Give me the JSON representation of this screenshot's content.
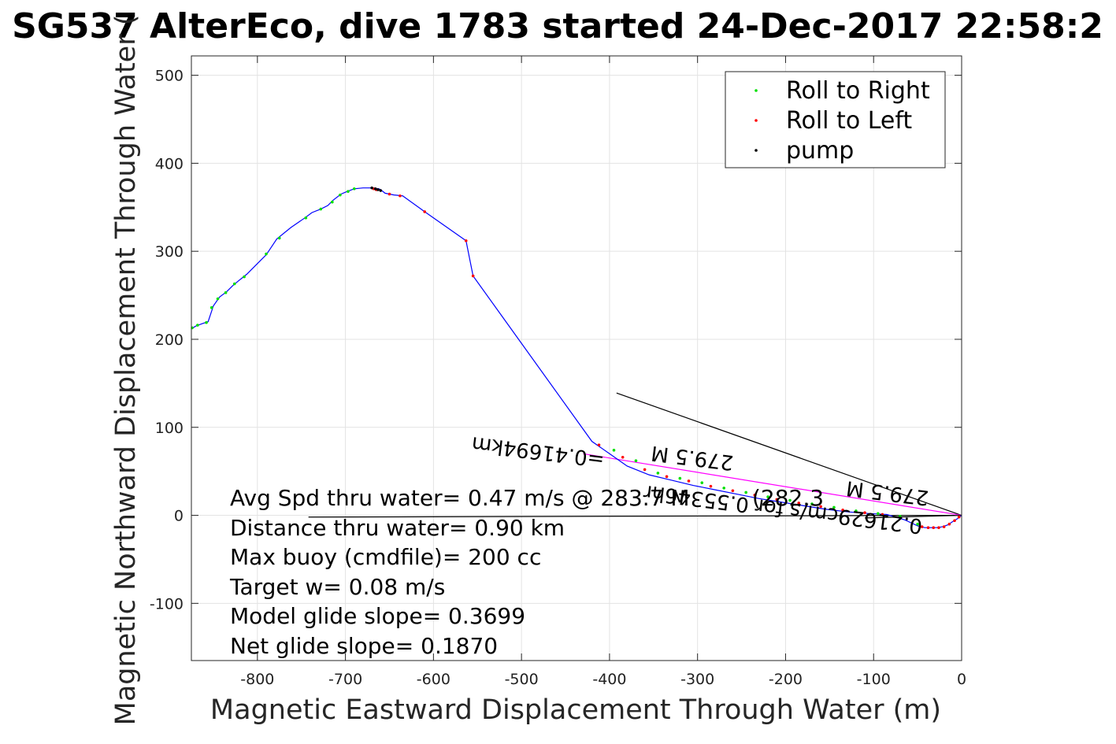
{
  "chart_data": {
    "type": "line",
    "title": "SG537 AlterEco, dive 1783 started 24-Dec-2017 22:58:2",
    "xlabel": "Magnetic Eastward Displacement Through Water (m)",
    "ylabel": "Magnetic Northward Displacement Through Water (",
    "xlim": [
      -875,
      0
    ],
    "ylim": [
      -165,
      522
    ],
    "xticks": [
      -800,
      -700,
      -600,
      -500,
      -400,
      -300,
      -200,
      -100,
      0
    ],
    "xtick_labels": [
      "-800",
      "-700",
      "-600",
      "-500",
      "-400",
      "-300",
      "-200",
      "-100",
      "0"
    ],
    "yticks": [
      -100,
      0,
      100,
      200,
      300,
      400,
      500
    ],
    "ytick_labels": [
      "-100",
      "0",
      "100",
      "200",
      "300",
      "400",
      "500"
    ],
    "grid": true,
    "legend_position": "top-right",
    "legend": [
      {
        "label": "Roll to Right",
        "color": "#00e000"
      },
      {
        "label": "Roll to Left",
        "color": "#ff0000"
      },
      {
        "label": "pump",
        "color": "#000000"
      }
    ],
    "track": {
      "color": "#0000ff",
      "x": [
        -875,
        -870,
        -862,
        -856,
        -850,
        -843,
        -835,
        -828,
        -822,
        -812,
        -798,
        -790,
        -778,
        -762,
        -746,
        -738,
        -728,
        -720,
        -714,
        -705,
        -698,
        -690,
        -680,
        -668,
        -662,
        -660,
        -655,
        -645,
        -635,
        -610,
        -563,
        -555,
        -420,
        -400,
        -380,
        -355,
        -330,
        -305,
        -280,
        -255,
        -230,
        -205,
        -180,
        -155,
        -130,
        -105,
        -85,
        -65,
        -50,
        -42,
        -35,
        -28,
        -22,
        -16,
        -10,
        -5,
        0
      ],
      "y": [
        212,
        215,
        218,
        220,
        238,
        248,
        254,
        261,
        266,
        274,
        288,
        296,
        314,
        327,
        338,
        344,
        348,
        352,
        358,
        365,
        368,
        371,
        372,
        372,
        371,
        370,
        366,
        364,
        363,
        345,
        312,
        272,
        84,
        70,
        56,
        46,
        40,
        34,
        29,
        24,
        19,
        15,
        11,
        7,
        4,
        2,
        1,
        -5,
        -12,
        -14,
        -14,
        -14,
        -13,
        -11,
        -7,
        -4,
        0
      ]
    },
    "roll_right": {
      "x": [
        -874,
        -868,
        -858,
        -852,
        -845,
        -836,
        -826,
        -815,
        -790,
        -775,
        -745,
        -728,
        -715,
        -706,
        -697,
        -690,
        -395,
        -370,
        -345,
        -320,
        -295,
        -270,
        -245,
        -220,
        -195,
        -170,
        -145,
        -120,
        -95,
        -70,
        -50
      ],
      "y": [
        213,
        216,
        219,
        236,
        246,
        253,
        263,
        271,
        297,
        315,
        338,
        348,
        356,
        364,
        368,
        371,
        74,
        62,
        48,
        42,
        37,
        31,
        26,
        21,
        17,
        13,
        9,
        5,
        2,
        -1,
        -10
      ]
    },
    "roll_left": {
      "x": [
        -668,
        -665,
        -650,
        -638,
        -610,
        -563,
        -555,
        -412,
        -385,
        -360,
        -335,
        -310,
        -285,
        -260,
        -235,
        -210,
        -185,
        -160,
        -135,
        -110,
        -90,
        -45,
        -38,
        -32,
        -26,
        -20,
        -14,
        -8,
        -3
      ],
      "y": [
        371,
        370,
        365,
        363,
        345,
        312,
        272,
        80,
        66,
        52,
        44,
        39,
        33,
        28,
        23,
        18,
        14,
        10,
        6,
        3,
        1,
        -13,
        -14,
        -14,
        -14,
        -13,
        -10,
        -6,
        -2
      ]
    },
    "pump": {
      "x": [
        -670,
        -666,
        -663,
        -660
      ],
      "y": [
        372,
        371,
        370,
        369
      ]
    },
    "overlay_lines": [
      {
        "color": "#000000",
        "x": [
          -392,
          0
        ],
        "y": [
          139,
          0
        ]
      },
      {
        "color": "#000000",
        "x": [
          -742,
          0
        ],
        "y": [
          -2,
          0
        ]
      },
      {
        "color": "#000000",
        "x": [
          -110,
          0
        ],
        "y": [
          -3,
          0
        ]
      },
      {
        "color": "#ff00ff",
        "x": [
          -430,
          0
        ],
        "y": [
          70,
          0
        ]
      }
    ],
    "annotations": [
      "Avg Spd thru water=  0.47 m/s @ 283.7  M",
      "Distance thru water=  0.90 km",
      "Max buoy (cmdfile)= 200 cc",
      "Target w= 0.08 m/s",
      "Model glide slope= 0.3699",
      "Net glide slope= 0.1870"
    ],
    "rotated_annotations": [
      "279.5 M",
      "=0.41694km",
      "279.5 M",
      "0.21629cm/s for 0.55346hr",
      "(282.3"
    ]
  }
}
